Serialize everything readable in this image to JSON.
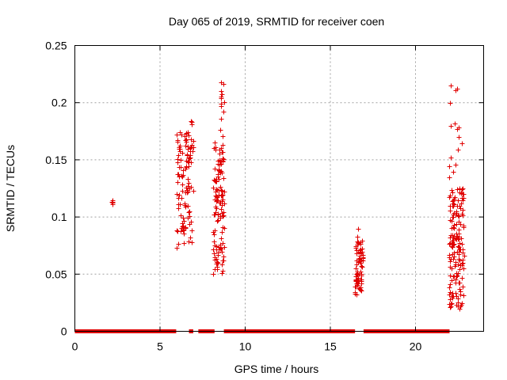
{
  "chart_data": {
    "type": "scatter",
    "title": "Day 065 of 2019, SRMTID for receiver coen",
    "xlabel": "GPS time / hours",
    "ylabel": "SRMTID / TECUs",
    "xlim": [
      0,
      24
    ],
    "ylim": [
      0,
      0.25
    ],
    "grid": true,
    "x_ticks": [
      0,
      5,
      10,
      15,
      20
    ],
    "x_tick_labels": [
      "0",
      "5",
      "10",
      "15",
      "20"
    ],
    "y_ticks": [
      0,
      0.05,
      0.1,
      0.15,
      0.2,
      0.25
    ],
    "y_tick_labels": [
      "0",
      "0.05",
      "0.1",
      "0.15",
      "0.2",
      "0.25"
    ],
    "marker": "+",
    "color": "#e00000",
    "zero_segments": [
      [
        0.0,
        5.95
      ],
      [
        6.7,
        6.95
      ],
      [
        7.25,
        8.2
      ],
      [
        8.75,
        16.45
      ],
      [
        16.95,
        22.0
      ]
    ],
    "clusters": [
      {
        "x_range": [
          2.1,
          2.3
        ],
        "count": 3,
        "y_range": [
          0.111,
          0.115
        ]
      },
      {
        "x_range": [
          5.95,
          6.95
        ],
        "count": 110,
        "y_range": [
          0.07,
          0.175
        ]
      },
      {
        "x_range": [
          6.8,
          6.95
        ],
        "count": 2,
        "y_range": [
          0.18,
          0.185
        ]
      },
      {
        "x_range": [
          8.1,
          8.75
        ],
        "count": 120,
        "y_range": [
          0.05,
          0.165
        ]
      },
      {
        "x_range": [
          8.5,
          8.75
        ],
        "count": 8,
        "y_range": [
          0.17,
          0.218
        ]
      },
      {
        "x_range": [
          16.45,
          16.95
        ],
        "count": 70,
        "y_range": [
          0.032,
          0.08
        ]
      },
      {
        "x_range": [
          21.95,
          22.85
        ],
        "count": 160,
        "y_range": [
          0.02,
          0.125
        ]
      },
      {
        "x_range": [
          21.95,
          22.75
        ],
        "count": 10,
        "y_range": [
          0.13,
          0.215
        ]
      }
    ],
    "points": [
      [
        2.2,
        0.113
      ],
      [
        2.2,
        0.111
      ],
      [
        6.85,
        0.183
      ],
      [
        8.6,
        0.218
      ],
      [
        8.6,
        0.21
      ],
      [
        8.6,
        0.205
      ],
      [
        8.6,
        0.197
      ],
      [
        8.55,
        0.176
      ],
      [
        16.65,
        0.09
      ],
      [
        16.6,
        0.083
      ],
      [
        16.55,
        0.032
      ],
      [
        22.05,
        0.215
      ],
      [
        22.45,
        0.212
      ],
      [
        22.3,
        0.182
      ],
      [
        22.05,
        0.18
      ],
      [
        22.55,
        0.17
      ],
      [
        22.05,
        0.152
      ],
      [
        22.6,
        0.02
      ]
    ]
  }
}
